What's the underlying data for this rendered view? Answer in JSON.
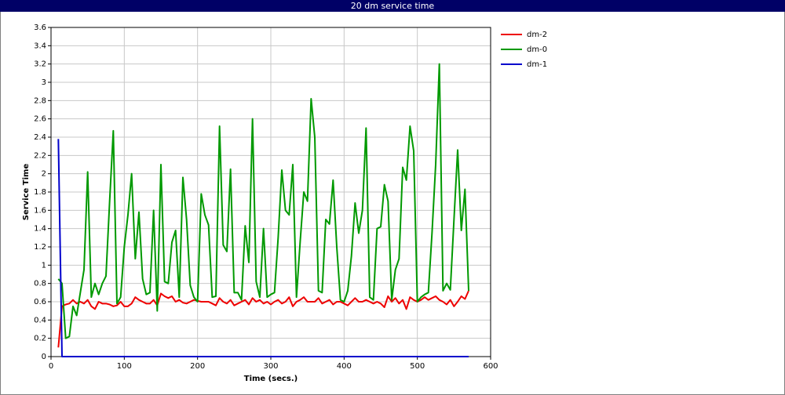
{
  "chart_data": {
    "type": "line",
    "title": "20 dm service time",
    "x_label": "Time (secs.)",
    "y_label": "Service Time",
    "x": [
      10,
      15,
      20,
      25,
      30,
      35,
      40,
      45,
      50,
      55,
      60,
      65,
      70,
      75,
      80,
      85,
      90,
      95,
      100,
      105,
      110,
      115,
      120,
      125,
      130,
      135,
      140,
      145,
      150,
      155,
      160,
      165,
      170,
      175,
      180,
      185,
      190,
      195,
      200,
      205,
      210,
      215,
      220,
      225,
      230,
      235,
      240,
      245,
      250,
      255,
      260,
      265,
      270,
      275,
      280,
      285,
      290,
      295,
      300,
      305,
      310,
      315,
      320,
      325,
      330,
      335,
      340,
      345,
      350,
      355,
      360,
      365,
      370,
      375,
      380,
      385,
      390,
      395,
      400,
      405,
      410,
      415,
      420,
      425,
      430,
      435,
      440,
      445,
      450,
      455,
      460,
      465,
      470,
      475,
      480,
      485,
      490,
      495,
      500,
      505,
      510,
      515,
      520,
      525,
      530,
      535,
      540,
      545,
      550,
      555,
      560,
      565,
      570
    ],
    "series": [
      {
        "name": "dm-2",
        "color": "#ee0000",
        "values": [
          0.1,
          0.55,
          0.57,
          0.58,
          0.62,
          0.58,
          0.6,
          0.58,
          0.62,
          0.55,
          0.52,
          0.6,
          0.58,
          0.58,
          0.57,
          0.55,
          0.56,
          0.6,
          0.55,
          0.55,
          0.58,
          0.65,
          0.62,
          0.6,
          0.58,
          0.58,
          0.62,
          0.56,
          0.69,
          0.66,
          0.64,
          0.66,
          0.6,
          0.62,
          0.59,
          0.58,
          0.6,
          0.62,
          0.61,
          0.6,
          0.6,
          0.6,
          0.58,
          0.56,
          0.64,
          0.6,
          0.58,
          0.62,
          0.56,
          0.58,
          0.6,
          0.62,
          0.57,
          0.64,
          0.6,
          0.62,
          0.58,
          0.6,
          0.57,
          0.6,
          0.62,
          0.58,
          0.6,
          0.65,
          0.55,
          0.6,
          0.62,
          0.65,
          0.6,
          0.6,
          0.6,
          0.64,
          0.58,
          0.6,
          0.62,
          0.57,
          0.6,
          0.6,
          0.58,
          0.56,
          0.6,
          0.64,
          0.6,
          0.6,
          0.62,
          0.6,
          0.58,
          0.6,
          0.58,
          0.54,
          0.66,
          0.6,
          0.64,
          0.58,
          0.62,
          0.52,
          0.65,
          0.62,
          0.6,
          0.62,
          0.65,
          0.62,
          0.64,
          0.66,
          0.62,
          0.6,
          0.57,
          0.62,
          0.55,
          0.6,
          0.66,
          0.63,
          0.72
        ]
      },
      {
        "name": "dm-0",
        "color": "#009900",
        "values": [
          0.85,
          0.8,
          0.2,
          0.22,
          0.55,
          0.45,
          0.7,
          0.95,
          2.02,
          0.65,
          0.8,
          0.68,
          0.8,
          0.88,
          1.7,
          2.47,
          0.58,
          0.65,
          1.2,
          1.55,
          2.0,
          1.07,
          1.58,
          0.85,
          0.68,
          0.7,
          1.6,
          0.5,
          2.1,
          0.82,
          0.8,
          1.25,
          1.38,
          0.65,
          1.96,
          1.5,
          0.78,
          0.65,
          0.6,
          1.78,
          1.55,
          1.44,
          0.65,
          0.66,
          2.52,
          1.22,
          1.15,
          2.05,
          0.7,
          0.7,
          0.62,
          1.43,
          1.03,
          2.6,
          0.82,
          0.65,
          1.4,
          0.65,
          0.68,
          0.7,
          1.3,
          2.04,
          1.6,
          1.55,
          2.1,
          0.65,
          1.25,
          1.8,
          1.7,
          2.82,
          2.4,
          0.72,
          0.7,
          1.5,
          1.45,
          1.93,
          1.2,
          0.62,
          0.6,
          0.72,
          1.1,
          1.68,
          1.35,
          1.6,
          2.5,
          0.65,
          0.62,
          1.4,
          1.42,
          1.88,
          1.7,
          0.62,
          0.95,
          1.07,
          2.07,
          1.93,
          2.52,
          2.25,
          0.6,
          0.65,
          0.68,
          0.7,
          1.35,
          2.1,
          3.2,
          0.72,
          0.8,
          0.73,
          1.5,
          2.26,
          1.38,
          1.83,
          0.72
        ]
      },
      {
        "name": "dm-1",
        "color": "#0000cc",
        "values": [
          2.38,
          0,
          0,
          0,
          0,
          0,
          0,
          0,
          0,
          0,
          0,
          0,
          0,
          0,
          0,
          0,
          0,
          0,
          0,
          0,
          0,
          0,
          0,
          0,
          0,
          0,
          0,
          0,
          0,
          0,
          0,
          0,
          0,
          0,
          0,
          0,
          0,
          0,
          0,
          0,
          0,
          0,
          0,
          0,
          0,
          0,
          0,
          0,
          0,
          0,
          0,
          0,
          0,
          0,
          0,
          0,
          0,
          0,
          0,
          0,
          0,
          0,
          0,
          0,
          0,
          0,
          0,
          0,
          0,
          0,
          0,
          0,
          0,
          0,
          0,
          0,
          0,
          0,
          0,
          0,
          0,
          0,
          0,
          0,
          0,
          0,
          0,
          0,
          0,
          0,
          0,
          0,
          0,
          0,
          0,
          0,
          0,
          0,
          0,
          0,
          0,
          0,
          0,
          0,
          0,
          0,
          0,
          0,
          0,
          0,
          0,
          0,
          0
        ]
      }
    ],
    "xlim": [
      0,
      600
    ],
    "xticks": [
      0,
      100,
      200,
      300,
      400,
      500,
      600
    ],
    "ylim": [
      0,
      3.6
    ],
    "yticks": [
      0,
      0.2,
      0.4,
      0.6,
      0.8,
      1,
      1.2,
      1.4,
      1.6,
      1.8,
      2,
      2.2,
      2.4,
      2.6,
      2.8,
      3,
      3.2,
      3.4,
      3.6
    ],
    "grid": true,
    "legend": "right"
  }
}
